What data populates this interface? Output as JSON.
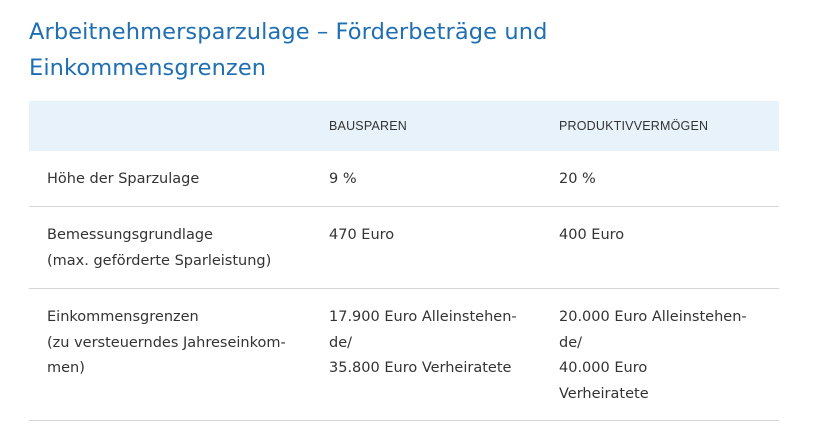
{
  "heading": {
    "line1": "Arbeitnehmersparzulage – Förderbeträge und",
    "line2": "Einkommensgrenzen"
  },
  "table": {
    "headers": [
      "",
      "BAUSPAREN",
      "PRODUKTIVVERMÖGEN"
    ],
    "rows": [
      {
        "label": [
          "Höhe der Sparzulage"
        ],
        "bausparen": [
          "9 %"
        ],
        "produktiv": [
          "20 %"
        ]
      },
      {
        "label": [
          "Bemessungsgrundlage",
          "(max. geförderte Sparleistung)"
        ],
        "bausparen": [
          "470 Euro"
        ],
        "produktiv": [
          "400 Euro"
        ]
      },
      {
        "label": [
          "Einkommensgrenzen",
          "(zu versteuerndes Jahreseinkom-",
          "men)"
        ],
        "bausparen": [
          "17.900 Euro Alleinstehen-",
          "de/",
          "35.800 Euro Verheiratete"
        ],
        "produktiv": [
          "20.000 Euro Alleinstehen-",
          "de/",
          "40.000 Euro",
          "Verheiratete"
        ]
      }
    ]
  }
}
